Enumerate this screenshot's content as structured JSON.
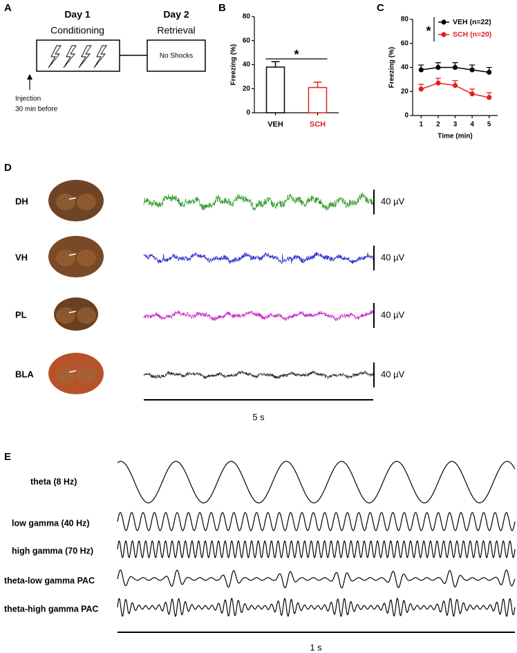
{
  "panel_a": {
    "label": "A",
    "day1": "Day 1",
    "day1_sub": "Conditioning",
    "day2": "Day 2",
    "day2_sub": "Retrieval",
    "box2": "No Shocks",
    "injection": [
      "Injection",
      "30 min before"
    ]
  },
  "chart_data": [
    {
      "panel": "B",
      "type": "bar",
      "categories": [
        "VEH",
        "SCH"
      ],
      "values": [
        38,
        21
      ],
      "errors": [
        4.5,
        4.5
      ],
      "colors": [
        "#000000",
        "#e02020"
      ],
      "ylabel": "Freezing (%)",
      "ylim": [
        0,
        80
      ],
      "yticks": [
        0,
        20,
        40,
        60,
        80
      ],
      "annotation": "*"
    },
    {
      "panel": "C",
      "type": "line",
      "x": [
        1,
        2,
        3,
        4,
        5
      ],
      "series": [
        {
          "name": "VEH (n=22)",
          "color": "#000000",
          "values": [
            38,
            40,
            40,
            38,
            36
          ],
          "errors": [
            4,
            4,
            4,
            4,
            4
          ]
        },
        {
          "name": "SCH (n=20)",
          "color": "#e02020",
          "values": [
            22,
            27,
            25,
            18,
            15
          ],
          "errors": [
            4,
            4,
            4,
            4,
            4
          ]
        }
      ],
      "xlabel": "Time (min)",
      "ylabel": "Freezing (%)",
      "xlim": [
        0.5,
        5.5
      ],
      "ylim": [
        0,
        80
      ],
      "xticks": [
        1,
        2,
        3,
        4,
        5
      ],
      "yticks": [
        0,
        20,
        40,
        60,
        80
      ],
      "annotation": "*"
    }
  ],
  "panel_d": {
    "label": "D",
    "regions": [
      "DH",
      "VH",
      "PL",
      "BLA"
    ],
    "trace_colors": [
      "#2a9a2a",
      "#2424d0",
      "#c820c8",
      "#222222"
    ],
    "scale_amplitude": "40 µV",
    "scale_time": "5 s"
  },
  "panel_e": {
    "label": "E",
    "bands": [
      "theta (8 Hz)",
      "low gamma (40 Hz)",
      "high gamma (70 Hz)",
      "theta-low gamma PAC",
      "theta-high gamma PAC"
    ],
    "scale_time": "1 s"
  }
}
